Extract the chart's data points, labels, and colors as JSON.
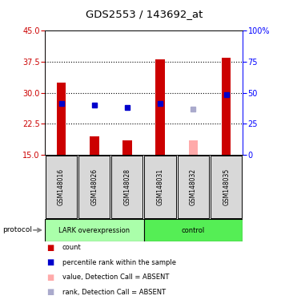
{
  "title": "GDS2553 / 143692_at",
  "samples": [
    "GSM148016",
    "GSM148026",
    "GSM148028",
    "GSM148031",
    "GSM148032",
    "GSM148035"
  ],
  "ylim_left": [
    15,
    45
  ],
  "ylim_right": [
    0,
    100
  ],
  "yticks_left": [
    15,
    22.5,
    30,
    37.5,
    45
  ],
  "yticks_right": [
    0,
    25,
    50,
    75,
    100
  ],
  "ytick_labels_right": [
    "0",
    "25",
    "50",
    "75",
    "100%"
  ],
  "red_bars": [
    32.5,
    19.5,
    18.5,
    38.0,
    null,
    38.5
  ],
  "blue_squares": [
    27.5,
    27.0,
    26.5,
    27.5,
    null,
    29.5
  ],
  "pink_bars": [
    null,
    null,
    null,
    null,
    18.5,
    null
  ],
  "light_blue_squares": [
    null,
    null,
    null,
    null,
    26.0,
    null
  ],
  "left_color": "#cc0000",
  "blue_color": "#0000cc",
  "pink_color": "#ffaaaa",
  "light_blue_color": "#aaaacc",
  "ybaseline": 15,
  "lark_color": "#aaffaa",
  "control_color": "#55ee55",
  "legend_items": [
    {
      "color": "#cc0000",
      "label": "count"
    },
    {
      "color": "#0000cc",
      "label": "percentile rank within the sample"
    },
    {
      "color": "#ffaaaa",
      "label": "value, Detection Call = ABSENT"
    },
    {
      "color": "#aaaacc",
      "label": "rank, Detection Call = ABSENT"
    }
  ]
}
